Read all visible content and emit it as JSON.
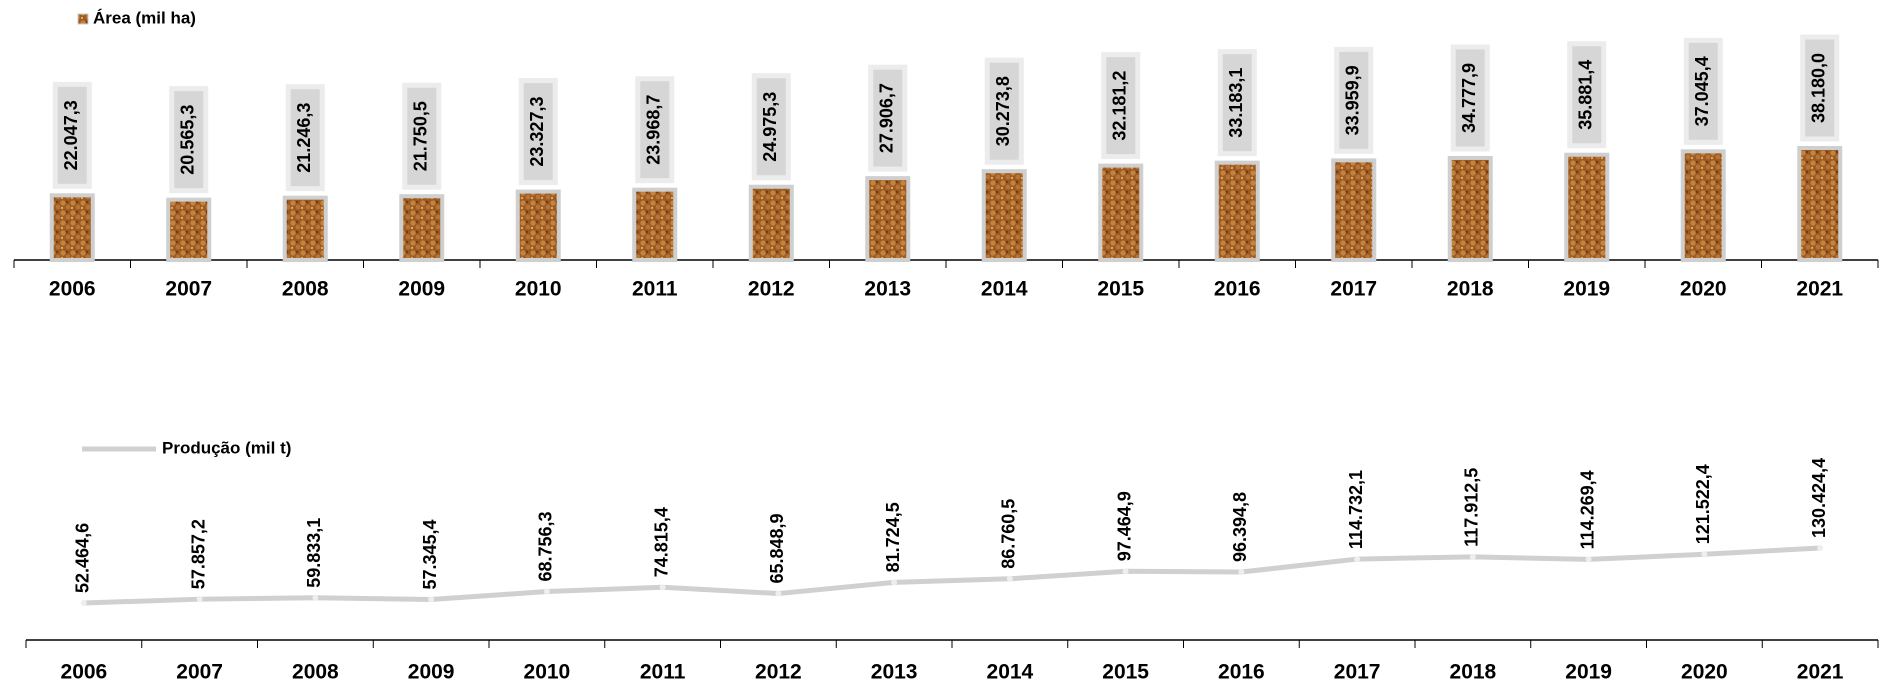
{
  "chart_data": [
    {
      "type": "bar",
      "categories": [
        "2006",
        "2007",
        "2008",
        "2009",
        "2010",
        "2011",
        "2012",
        "2013",
        "2014",
        "2015",
        "2016",
        "2017",
        "2018",
        "2019",
        "2020",
        "2021"
      ],
      "series": [
        {
          "name": "Área (mil ha)",
          "color": "#a0612a",
          "values": [
            22047.3,
            20565.3,
            21246.3,
            21750.5,
            23327.3,
            23968.7,
            24975.3,
            27906.7,
            30273.8,
            32181.2,
            33183.1,
            33959.9,
            34777.9,
            35881.4,
            37045.4,
            38180.0
          ],
          "value_labels": [
            "22.047,3",
            "20.565,3",
            "21.246,3",
            "21.750,5",
            "23.327,3",
            "23.968,7",
            "24.975,3",
            "27.906,7",
            "30.273,8",
            "32.181,2",
            "33.183,1",
            "33.959,9",
            "34.777,9",
            "35.881,4",
            "37.045,4",
            "38.180,0"
          ]
        }
      ]
    },
    {
      "type": "line",
      "categories": [
        "2006",
        "2007",
        "2008",
        "2009",
        "2010",
        "2011",
        "2012",
        "2013",
        "2014",
        "2015",
        "2016",
        "2017",
        "2018",
        "2019",
        "2020",
        "2021"
      ],
      "series": [
        {
          "name": "Produção (mil t)",
          "color": "#d0d0d0",
          "values": [
            52464.6,
            57857.2,
            59833.1,
            57345.4,
            68756.3,
            74815.4,
            65848.9,
            81724.5,
            86760.5,
            97464.9,
            96394.8,
            114732.1,
            117912.5,
            114269.4,
            121522.4,
            130424.4
          ],
          "value_labels": [
            "52.464,6",
            "57.857,2",
            "59.833,1",
            "57.345,4",
            "68.756,3",
            "74.815,4",
            "65.848,9",
            "81.724,5",
            "86.760,5",
            "97.464,9",
            "96.394,8",
            "114.732,1",
            "117.912,5",
            "114.269,4",
            "121.522,4",
            "130.424,4"
          ]
        }
      ]
    }
  ]
}
